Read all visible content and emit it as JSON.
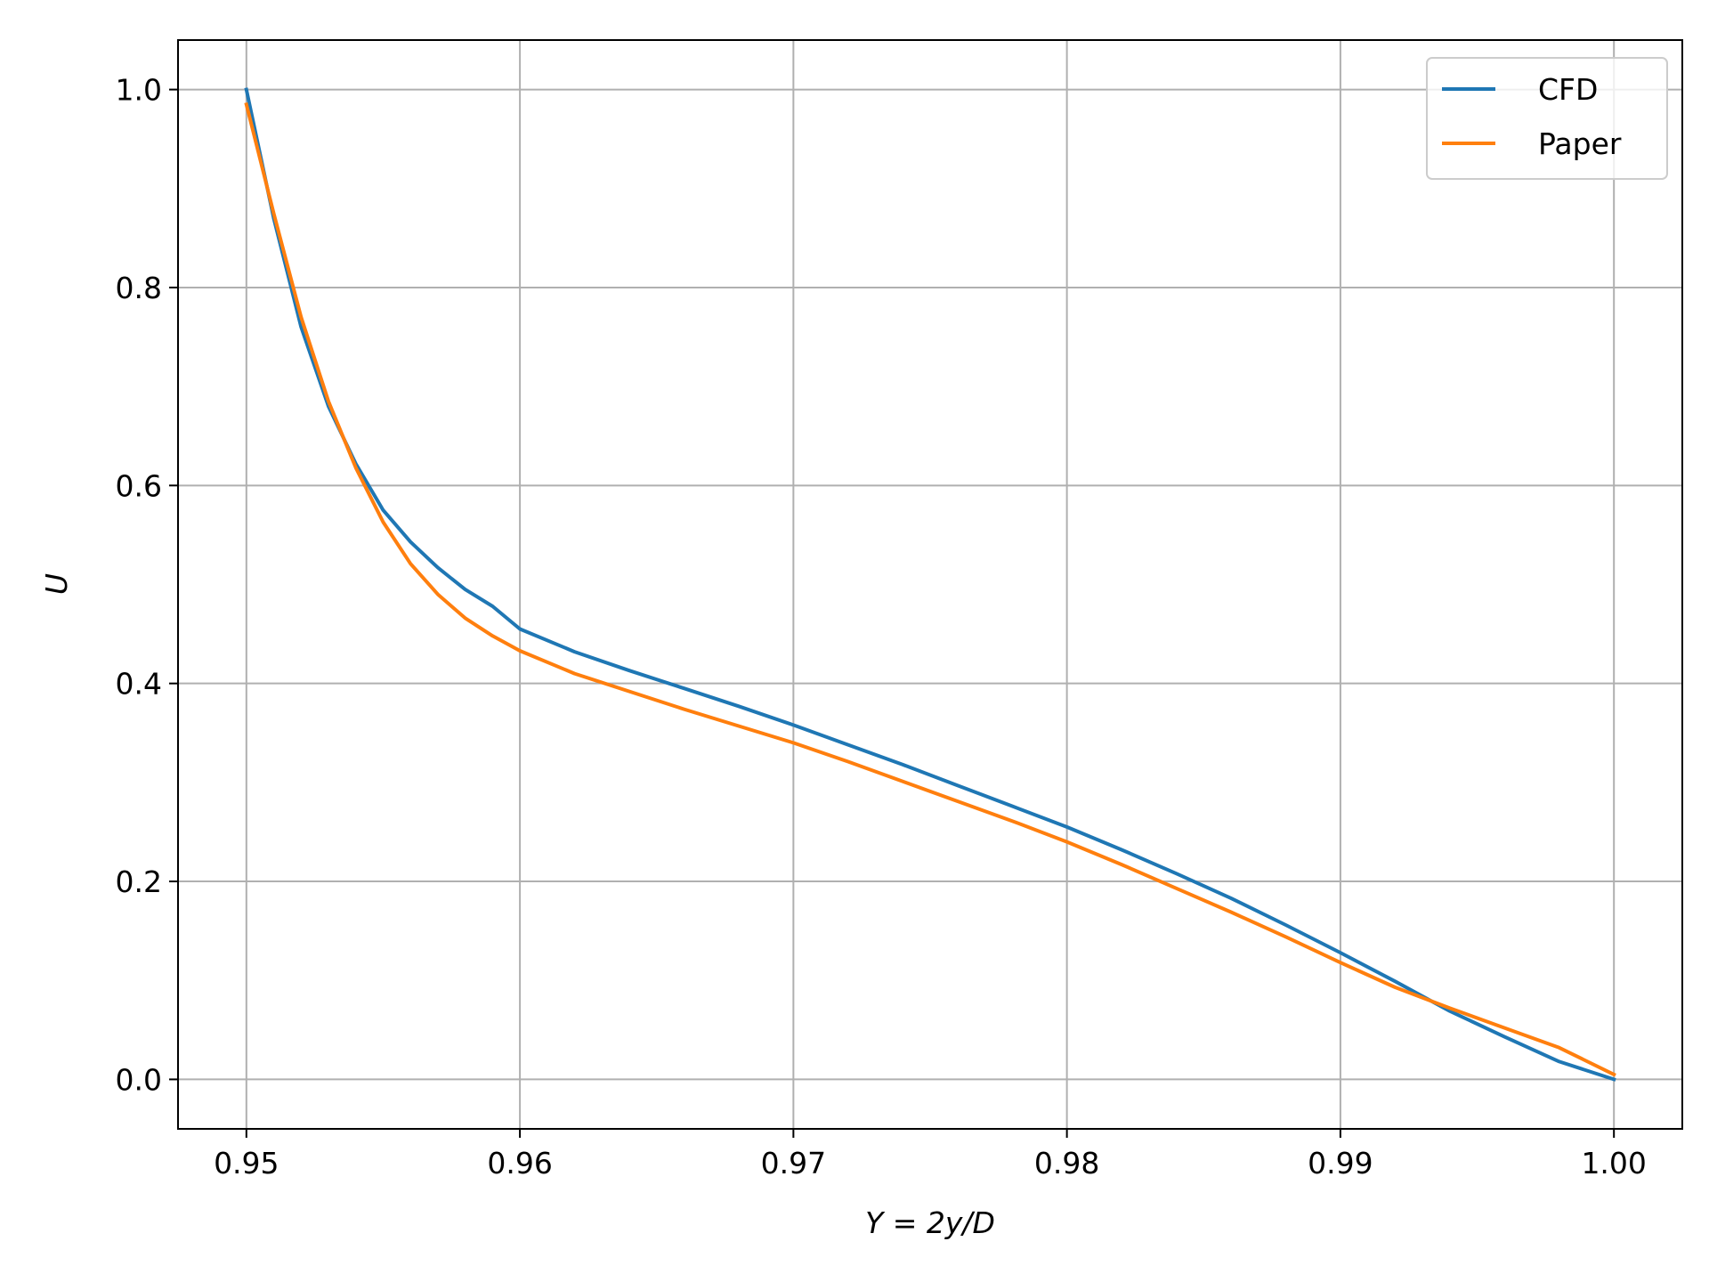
{
  "chart_data": {
    "type": "line",
    "xlabel": "Y = 2y/D",
    "ylabel": "U",
    "xlim": [
      0.9475,
      1.0025
    ],
    "ylim": [
      -0.05,
      1.05
    ],
    "xticks": [
      0.95,
      0.96,
      0.97,
      0.98,
      0.99,
      1.0
    ],
    "xtick_labels": [
      "0.95",
      "0.96",
      "0.97",
      "0.98",
      "0.99",
      "1.00"
    ],
    "yticks": [
      0.0,
      0.2,
      0.4,
      0.6,
      0.8,
      1.0
    ],
    "ytick_labels": [
      "0.0",
      "0.2",
      "0.4",
      "0.6",
      "0.8",
      "1.0"
    ],
    "grid": true,
    "legend": "top-right",
    "series": [
      {
        "name": "CFD",
        "color": "#1f77b4",
        "x": [
          0.95,
          0.951,
          0.952,
          0.953,
          0.954,
          0.955,
          0.956,
          0.957,
          0.958,
          0.959,
          0.96,
          0.962,
          0.964,
          0.966,
          0.968,
          0.97,
          0.972,
          0.974,
          0.976,
          0.978,
          0.98,
          0.982,
          0.984,
          0.986,
          0.988,
          0.99,
          0.992,
          0.994,
          0.996,
          0.998,
          1.0
        ],
        "y": [
          1.0,
          0.87,
          0.76,
          0.68,
          0.622,
          0.575,
          0.543,
          0.517,
          0.495,
          0.478,
          0.455,
          0.432,
          0.413,
          0.395,
          0.377,
          0.358,
          0.338,
          0.318,
          0.297,
          0.276,
          0.255,
          0.232,
          0.208,
          0.183,
          0.156,
          0.128,
          0.099,
          0.069,
          0.043,
          0.018,
          0.0
        ]
      },
      {
        "name": "Paper",
        "color": "#ff7f0e",
        "x": [
          0.95,
          0.951,
          0.952,
          0.953,
          0.954,
          0.955,
          0.956,
          0.957,
          0.958,
          0.959,
          0.96,
          0.962,
          0.964,
          0.966,
          0.968,
          0.97,
          0.972,
          0.974,
          0.976,
          0.978,
          0.98,
          0.982,
          0.984,
          0.986,
          0.988,
          0.99,
          0.992,
          0.994,
          0.996,
          0.998,
          1.0
        ],
        "y": [
          0.985,
          0.875,
          0.77,
          0.685,
          0.618,
          0.563,
          0.521,
          0.49,
          0.466,
          0.448,
          0.433,
          0.41,
          0.392,
          0.374,
          0.357,
          0.34,
          0.321,
          0.301,
          0.281,
          0.261,
          0.24,
          0.217,
          0.193,
          0.169,
          0.144,
          0.118,
          0.093,
          0.072,
          0.052,
          0.032,
          0.005
        ]
      }
    ]
  }
}
